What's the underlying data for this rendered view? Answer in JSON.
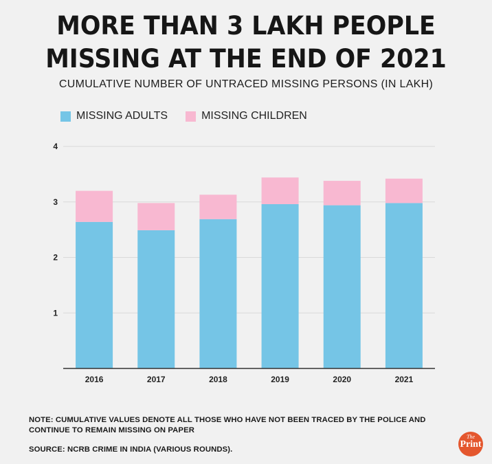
{
  "header": {
    "title_line1": "MORE THAN 3 LAKH PEOPLE",
    "title_line2": "MISSING AT THE END OF 2021",
    "subtitle": "CUMULATIVE NUMBER OF UNTRACED MISSING PERSONS (IN LAKH)"
  },
  "legend": {
    "adults_label": "MISSING ADULTS",
    "children_label": "MISSING CHILDREN"
  },
  "colors": {
    "adults": "#75c5e6",
    "children": "#f8b8d1",
    "grid": "#d9d9d9",
    "axis": "#333333"
  },
  "chart_data": {
    "type": "bar",
    "stacked": true,
    "title": "MORE THAN 3 LAKH PEOPLE MISSING AT THE END OF 2021",
    "subtitle": "CUMULATIVE NUMBER OF UNTRACED MISSING PERSONS (IN LAKH)",
    "categories": [
      "2016",
      "2017",
      "2018",
      "2019",
      "2020",
      "2021"
    ],
    "series": [
      {
        "name": "MISSING ADULTS",
        "values": [
          2.64,
          2.49,
          2.69,
          2.96,
          2.94,
          2.98
        ]
      },
      {
        "name": "MISSING CHILDREN",
        "values": [
          0.56,
          0.49,
          0.44,
          0.48,
          0.44,
          0.44
        ]
      }
    ],
    "yticks": [
      1,
      2,
      3,
      4
    ],
    "ylim": [
      0,
      4
    ],
    "xlabel": "",
    "ylabel": "",
    "grid": true,
    "legend_position": "top-left"
  },
  "footer": {
    "note": "NOTE:  CUMULATIVE VALUES DENOTE ALL THOSE WHO HAVE NOT BEEN TRACED BY THE POLICE AND CONTINUE TO REMAIN MISSING ON PAPER",
    "source": "SOURCE:  NCRB CRIME IN INDIA (VARIOUS ROUNDS).",
    "logo_the": "The",
    "logo_print": "Print"
  }
}
